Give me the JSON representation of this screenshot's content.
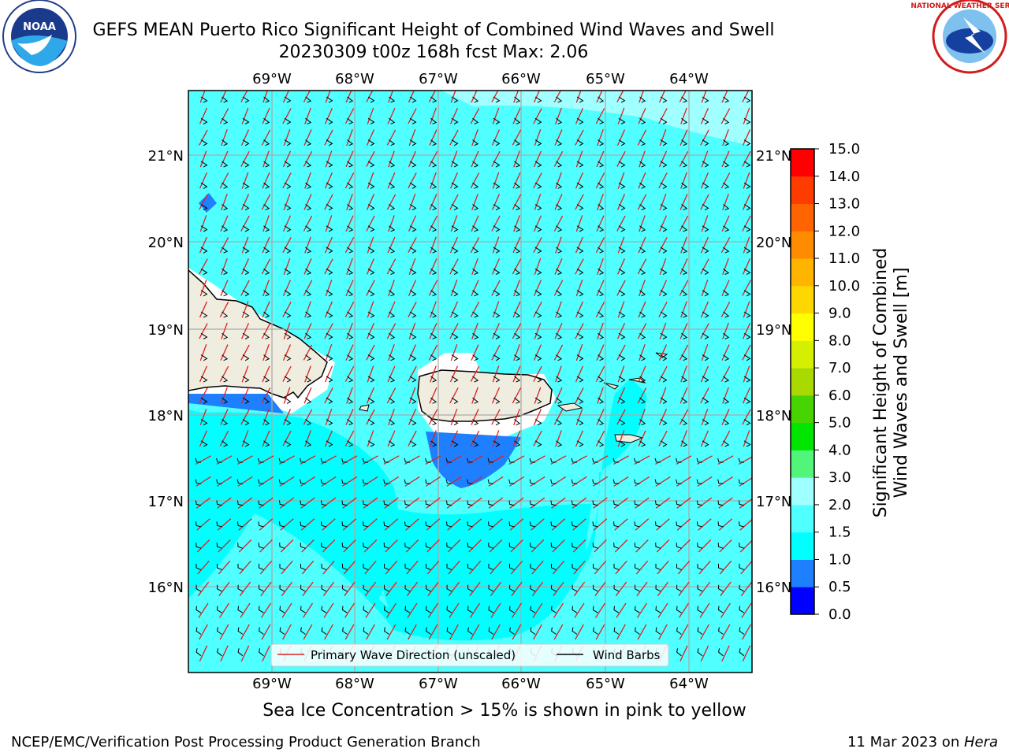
{
  "title_line1": "GEFS MEAN Puerto Rico Significant Height of Combined Wind Waves and Swell",
  "title_line2": "20230309 t00z 168h fcst   Max: 2.06",
  "logos": {
    "left": "NOAA",
    "left_ring_text": "NATIONAL OCEANIC AND ATMOSPHERIC ADMINISTRATION · U.S. DEPARTMENT OF COMMERCE",
    "right_ring_text": "NATIONAL WEATHER SERVICE"
  },
  "map": {
    "lon_labels": [
      "69°W",
      "68°W",
      "67°W",
      "66°W",
      "65°W",
      "64°W"
    ],
    "lat_labels": [
      "21°N",
      "20°N",
      "19°N",
      "18°N",
      "17°N",
      "16°N"
    ],
    "extent": {
      "lon_min": -69.99,
      "lon_max": -63.25,
      "lat_min": 15.0,
      "lat_max": 21.75
    }
  },
  "legend": {
    "wave_direction": "Primary Wave Direction (unscaled)",
    "wind_barbs": "Wind Barbs"
  },
  "colorbar": {
    "label_line1": "Significant Height of Combined",
    "label_line2": "Wind Waves and Swell [m]",
    "ticks": [
      "0.0",
      "0.5",
      "1.0",
      "1.5",
      "2.0",
      "3.0",
      "4.0",
      "5.0",
      "6.0",
      "7.0",
      "8.0",
      "9.0",
      "10.0",
      "11.0",
      "12.0",
      "13.0",
      "14.0",
      "15.0"
    ],
    "colors": [
      "#0000ff",
      "#1e7fff",
      "#00ffff",
      "#50ffff",
      "#a0ffff",
      "#50f57a",
      "#00e600",
      "#47d400",
      "#a8d900",
      "#d4f000",
      "#ffff00",
      "#ffd700",
      "#ffb400",
      "#ff8c00",
      "#ff6400",
      "#ff3c00",
      "#ff0000"
    ]
  },
  "sea_ice_note": "Sea Ice Concentration > 15% is shown in pink to yellow",
  "footer": {
    "left": "NCEP/EMC/Verification Post Processing Product Generation Branch",
    "date": "11 Mar 2023 on ",
    "machine": "Hera"
  }
}
